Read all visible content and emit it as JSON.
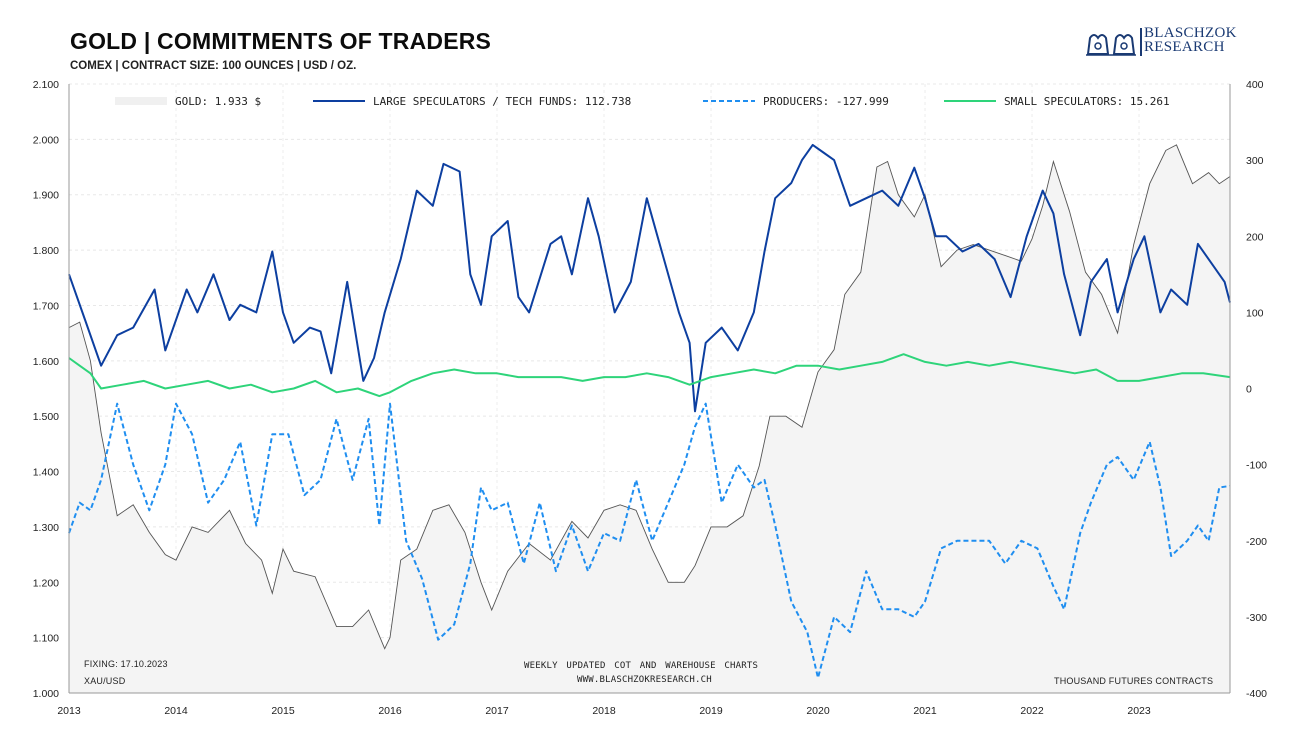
{
  "header": {
    "title": "GOLD | COMMITMENTS OF TRADERS",
    "subtitle": "COMEX | CONTRACT SIZE: 100 OUNCES | USD / OZ."
  },
  "logo": {
    "line1": "BLASCHZOK",
    "line2": "RESEARCH",
    "color": "#1a3a73"
  },
  "footer": {
    "fixing": "FIXING: 17.10.2023",
    "symbol": "XAU/USD",
    "center_line1": "WEEKLY UPDATED COT AND WAREHOUSE CHARTS",
    "center_line2": "WWW.BLASCHZOKRESEARCH.CH",
    "right_unit": "THOUSAND FUTURES CONTRACTS"
  },
  "chart_data": {
    "type": "line",
    "x_ticks": [
      "2013",
      "2014",
      "2015",
      "2016",
      "2017",
      "2018",
      "2019",
      "2020",
      "2021",
      "2022",
      "2023"
    ],
    "x_range": [
      2013.0,
      2023.85
    ],
    "y_left": {
      "ticks": [
        "2.100",
        "2.000",
        "1.900",
        "1.800",
        "1.700",
        "1.600",
        "1.500",
        "1.400",
        "1.300",
        "1.200",
        "1.100",
        "1.000"
      ],
      "range": [
        1000,
        2100
      ]
    },
    "y_right": {
      "ticks": [
        "400",
        "300",
        "200",
        "100",
        "0",
        "-100",
        "-200",
        "-300",
        "-400"
      ],
      "range": [
        -400,
        400
      ]
    },
    "grid": true,
    "legend": [
      {
        "label": "GOLD: 1.933 $",
        "color": "#f0f0f0",
        "style": "area"
      },
      {
        "label": "LARGE SPECULATORS / TECH FUNDS: 112.738",
        "color": "#0d3fa0",
        "style": "solid"
      },
      {
        "label": "PRODUCERS: -127.999",
        "color": "#1f8ef0",
        "style": "dashed"
      },
      {
        "label": "SMALL SPECULATORS: 15.261",
        "color": "#2ed47a",
        "style": "solid"
      }
    ],
    "series": [
      {
        "name": "GOLD",
        "axis": "left",
        "color": "#555555",
        "x": [
          2013.0,
          2013.1,
          2013.2,
          2013.3,
          2013.45,
          2013.6,
          2013.75,
          2013.9,
          2014.0,
          2014.15,
          2014.3,
          2014.5,
          2014.65,
          2014.8,
          2014.9,
          2015.0,
          2015.1,
          2015.3,
          2015.5,
          2015.65,
          2015.8,
          2015.95,
          2016.0,
          2016.1,
          2016.25,
          2016.4,
          2016.55,
          2016.7,
          2016.85,
          2016.95,
          2017.1,
          2017.3,
          2017.5,
          2017.7,
          2017.85,
          2018.0,
          2018.15,
          2018.3,
          2018.45,
          2018.6,
          2018.75,
          2018.85,
          2019.0,
          2019.15,
          2019.3,
          2019.45,
          2019.55,
          2019.7,
          2019.85,
          2020.0,
          2020.15,
          2020.25,
          2020.4,
          2020.55,
          2020.65,
          2020.75,
          2020.9,
          2021.0,
          2021.15,
          2021.3,
          2021.45,
          2021.6,
          2021.75,
          2021.9,
          2022.0,
          2022.1,
          2022.2,
          2022.35,
          2022.5,
          2022.65,
          2022.8,
          2022.95,
          2023.1,
          2023.25,
          2023.35,
          2023.5,
          2023.65,
          2023.75,
          2023.85
        ],
        "values": [
          1660,
          1670,
          1600,
          1470,
          1320,
          1340,
          1290,
          1250,
          1240,
          1300,
          1290,
          1330,
          1270,
          1240,
          1180,
          1260,
          1220,
          1210,
          1120,
          1120,
          1150,
          1080,
          1100,
          1240,
          1260,
          1330,
          1340,
          1290,
          1200,
          1150,
          1220,
          1270,
          1240,
          1310,
          1280,
          1330,
          1340,
          1330,
          1260,
          1200,
          1200,
          1230,
          1300,
          1300,
          1320,
          1410,
          1500,
          1500,
          1480,
          1580,
          1620,
          1720,
          1760,
          1950,
          1960,
          1900,
          1860,
          1900,
          1770,
          1800,
          1810,
          1800,
          1790,
          1780,
          1820,
          1880,
          1960,
          1870,
          1760,
          1720,
          1650,
          1810,
          1920,
          1980,
          1990,
          1920,
          1940,
          1920,
          1933
        ]
      },
      {
        "name": "LARGE SPECULATORS / TECH FUNDS",
        "axis": "right",
        "color": "#0d3fa0",
        "x": [
          2013.0,
          2013.15,
          2013.3,
          2013.45,
          2013.6,
          2013.8,
          2013.9,
          2014.1,
          2014.2,
          2014.35,
          2014.5,
          2014.6,
          2014.75,
          2014.9,
          2015.0,
          2015.1,
          2015.25,
          2015.35,
          2015.45,
          2015.6,
          2015.75,
          2015.85,
          2015.95,
          2016.1,
          2016.25,
          2016.4,
          2016.5,
          2016.65,
          2016.75,
          2016.85,
          2016.95,
          2017.1,
          2017.2,
          2017.3,
          2017.5,
          2017.6,
          2017.7,
          2017.85,
          2017.95,
          2018.1,
          2018.25,
          2018.4,
          2018.5,
          2018.7,
          2018.8,
          2018.85,
          2018.95,
          2019.1,
          2019.25,
          2019.4,
          2019.5,
          2019.6,
          2019.75,
          2019.85,
          2019.95,
          2020.05,
          2020.15,
          2020.3,
          2020.45,
          2020.6,
          2020.75,
          2020.9,
          2021.0,
          2021.1,
          2021.2,
          2021.35,
          2021.5,
          2021.65,
          2021.8,
          2021.95,
          2022.1,
          2022.2,
          2022.3,
          2022.45,
          2022.55,
          2022.7,
          2022.8,
          2022.95,
          2023.05,
          2023.2,
          2023.3,
          2023.45,
          2023.55,
          2023.7,
          2023.8,
          2023.85
        ],
        "values": [
          150,
          90,
          30,
          70,
          80,
          130,
          50,
          130,
          100,
          150,
          90,
          110,
          100,
          180,
          100,
          60,
          80,
          75,
          20,
          140,
          10,
          40,
          100,
          170,
          260,
          240,
          295,
          285,
          150,
          110,
          200,
          220,
          120,
          100,
          190,
          200,
          150,
          250,
          200,
          100,
          140,
          250,
          200,
          100,
          60,
          -30,
          60,
          80,
          50,
          100,
          180,
          250,
          270,
          300,
          320,
          310,
          300,
          240,
          250,
          260,
          240,
          290,
          250,
          200,
          200,
          180,
          190,
          170,
          120,
          200,
          260,
          230,
          150,
          70,
          140,
          170,
          100,
          170,
          200,
          100,
          130,
          110,
          190,
          160,
          140,
          113
        ]
      },
      {
        "name": "PRODUCERS",
        "axis": "right",
        "color": "#1f8ef0",
        "x": [
          2013.0,
          2013.1,
          2013.2,
          2013.3,
          2013.45,
          2013.6,
          2013.75,
          2013.9,
          2014.0,
          2014.15,
          2014.3,
          2014.45,
          2014.6,
          2014.75,
          2014.9,
          2015.05,
          2015.2,
          2015.35,
          2015.5,
          2015.65,
          2015.8,
          2015.9,
          2016.0,
          2016.15,
          2016.3,
          2016.45,
          2016.6,
          2016.75,
          2016.85,
          2016.95,
          2017.1,
          2017.25,
          2017.4,
          2017.55,
          2017.7,
          2017.85,
          2018.0,
          2018.15,
          2018.3,
          2018.45,
          2018.6,
          2018.75,
          2018.85,
          2018.95,
          2019.1,
          2019.25,
          2019.4,
          2019.5,
          2019.6,
          2019.75,
          2019.9,
          2020.0,
          2020.15,
          2020.3,
          2020.45,
          2020.6,
          2020.75,
          2020.9,
          2021.0,
          2021.15,
          2021.3,
          2021.45,
          2021.6,
          2021.75,
          2021.9,
          2022.05,
          2022.2,
          2022.3,
          2022.45,
          2022.55,
          2022.7,
          2022.8,
          2022.95,
          2023.1,
          2023.2,
          2023.3,
          2023.45,
          2023.55,
          2023.65,
          2023.75,
          2023.85
        ],
        "values": [
          -190,
          -150,
          -160,
          -120,
          -20,
          -100,
          -160,
          -100,
          -20,
          -60,
          -150,
          -120,
          -70,
          -180,
          -60,
          -60,
          -140,
          -120,
          -40,
          -120,
          -40,
          -180,
          -20,
          -200,
          -250,
          -330,
          -310,
          -230,
          -130,
          -160,
          -150,
          -230,
          -150,
          -240,
          -180,
          -240,
          -190,
          -200,
          -120,
          -200,
          -150,
          -100,
          -50,
          -20,
          -150,
          -100,
          -130,
          -120,
          -180,
          -280,
          -320,
          -380,
          -300,
          -320,
          -240,
          -290,
          -290,
          -300,
          -280,
          -210,
          -200,
          -200,
          -200,
          -230,
          -200,
          -210,
          -260,
          -290,
          -190,
          -150,
          -100,
          -90,
          -120,
          -70,
          -130,
          -220,
          -200,
          -180,
          -200,
          -130,
          -128
        ]
      },
      {
        "name": "SMALL SPECULATORS",
        "axis": "right",
        "color": "#2ed47a",
        "x": [
          2013.0,
          2013.1,
          2013.2,
          2013.3,
          2013.5,
          2013.7,
          2013.9,
          2014.1,
          2014.3,
          2014.5,
          2014.7,
          2014.9,
          2015.1,
          2015.3,
          2015.5,
          2015.7,
          2015.9,
          2016.0,
          2016.2,
          2016.4,
          2016.6,
          2016.8,
          2017.0,
          2017.2,
          2017.4,
          2017.6,
          2017.8,
          2018.0,
          2018.2,
          2018.4,
          2018.6,
          2018.8,
          2019.0,
          2019.2,
          2019.4,
          2019.6,
          2019.8,
          2020.0,
          2020.2,
          2020.4,
          2020.6,
          2020.8,
          2021.0,
          2021.2,
          2021.4,
          2021.6,
          2021.8,
          2022.0,
          2022.2,
          2022.4,
          2022.6,
          2022.8,
          2023.0,
          2023.2,
          2023.4,
          2023.6,
          2023.85
        ],
        "values": [
          40,
          30,
          20,
          0,
          5,
          10,
          0,
          5,
          10,
          0,
          5,
          -5,
          0,
          10,
          -5,
          0,
          -10,
          -5,
          10,
          20,
          25,
          20,
          20,
          15,
          15,
          15,
          10,
          15,
          15,
          20,
          15,
          5,
          15,
          20,
          25,
          20,
          30,
          30,
          25,
          30,
          35,
          45,
          35,
          30,
          35,
          30,
          35,
          30,
          25,
          20,
          25,
          10,
          10,
          15,
          20,
          20,
          15
        ]
      }
    ]
  }
}
